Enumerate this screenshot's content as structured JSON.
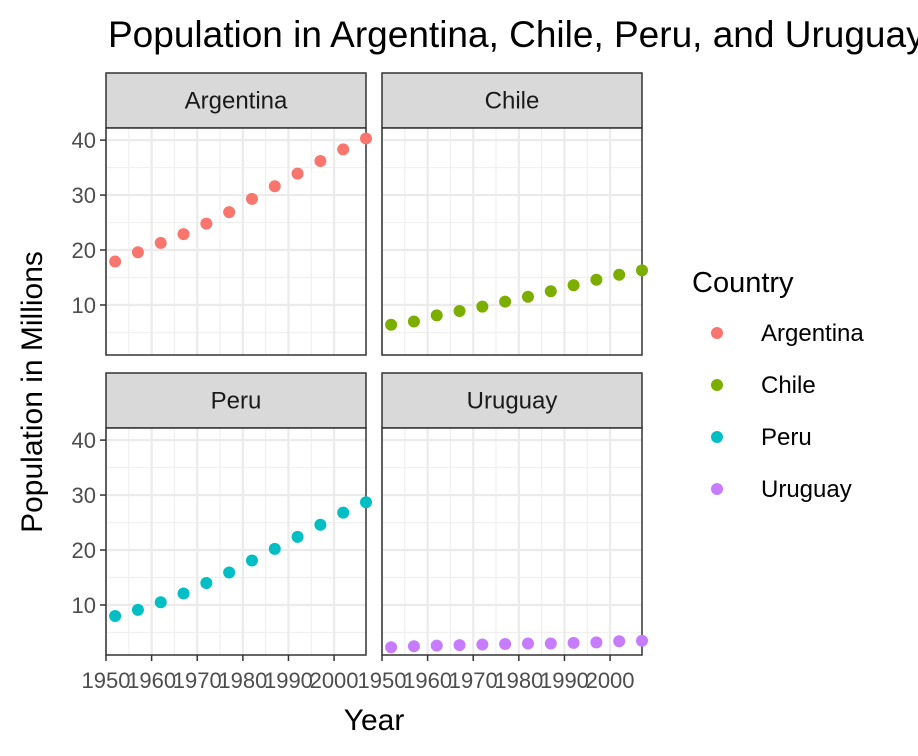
{
  "chart_data": {
    "type": "scatter",
    "title": "Population in Argentina, Chile, Peru, and Uruguay",
    "xlabel": "Year",
    "ylabel": "Population in Millions",
    "xlim": [
      1950,
      2007
    ],
    "ylim": [
      0.9,
      42.2
    ],
    "x_ticks": [
      1950,
      1960,
      1970,
      1980,
      1990,
      2000
    ],
    "x_tick_labels": [
      "1950",
      "1960",
      "1970",
      "1980",
      "1990",
      "2000"
    ],
    "y_ticks": [
      10,
      20,
      30,
      40
    ],
    "y_tick_labels": [
      "10",
      "20",
      "30",
      "40"
    ],
    "facet_layout": "2x2 grid, shared axes",
    "grid": true,
    "legend": {
      "title": "Country",
      "position": "right"
    },
    "x": [
      1952,
      1957,
      1962,
      1967,
      1972,
      1977,
      1982,
      1987,
      1992,
      1997,
      2002,
      2007
    ],
    "series": [
      {
        "name": "Argentina",
        "color": "#F8766D",
        "values": [
          17.9,
          19.6,
          21.3,
          22.9,
          24.8,
          26.9,
          29.3,
          31.6,
          33.9,
          36.2,
          38.3,
          40.3
        ]
      },
      {
        "name": "Chile",
        "color": "#7CAE00",
        "values": [
          6.4,
          7.0,
          8.1,
          8.9,
          9.7,
          10.6,
          11.5,
          12.5,
          13.6,
          14.6,
          15.5,
          16.3
        ]
      },
      {
        "name": "Peru",
        "color": "#00BFC4",
        "values": [
          8.0,
          9.1,
          10.5,
          12.1,
          14.0,
          15.9,
          18.1,
          20.2,
          22.4,
          24.6,
          26.8,
          28.7
        ]
      },
      {
        "name": "Uruguay",
        "color": "#C77CFF",
        "values": [
          2.3,
          2.5,
          2.6,
          2.7,
          2.8,
          2.9,
          3.0,
          3.0,
          3.1,
          3.2,
          3.4,
          3.5
        ]
      }
    ]
  }
}
